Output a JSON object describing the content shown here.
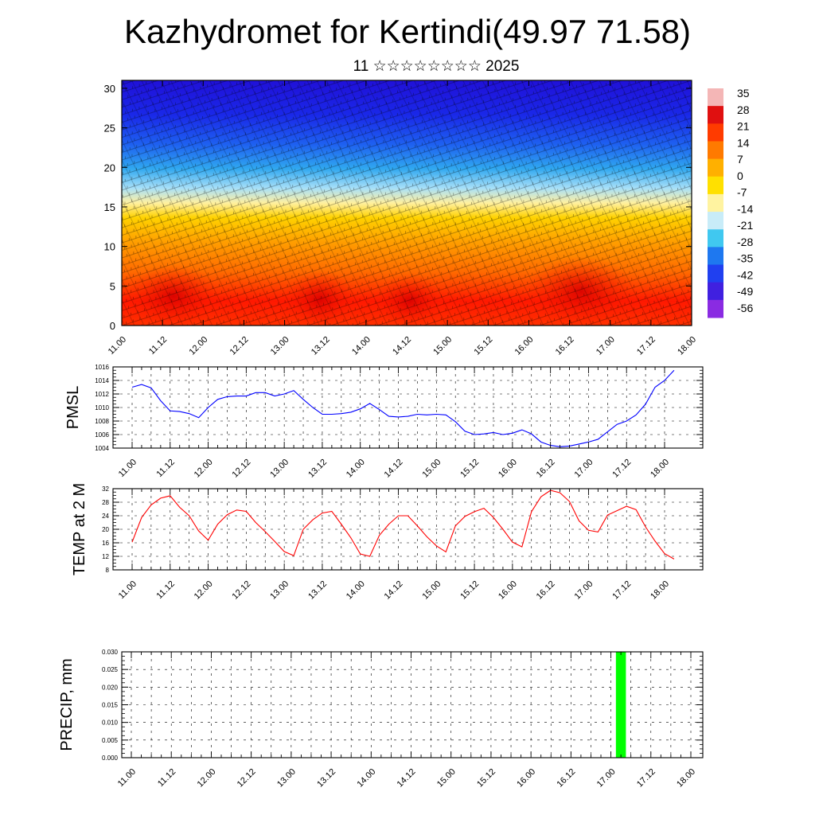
{
  "title": "Kazhydromet for Kertindi(49.97 71.58)",
  "subtitle": "11 ☆☆☆☆☆☆☆☆ 2025",
  "colors": {
    "pmsl_line": "#0000ff",
    "temp_line": "#ff0000",
    "precip_bar": "#00ff00",
    "colorbar": [
      "#f4b6b6",
      "#e01010",
      "#ff3b00",
      "#ff7a00",
      "#ffb000",
      "#ffe000",
      "#fff3a0",
      "#c8ecf8",
      "#40c8f0",
      "#1e78f0",
      "#2040f0",
      "#4020e0",
      "#8a2be2"
    ]
  },
  "chart_data": [
    {
      "type": "heatmap",
      "name": "cross-section",
      "x_ticks": [
        "11.00",
        "11.12",
        "12.00",
        "12.12",
        "13.00",
        "13.12",
        "14.00",
        "14.12",
        "15.00",
        "15.12",
        "16.00",
        "16.12",
        "17.00",
        "17.12",
        "18.00"
      ],
      "y_ticks": [
        "0",
        "5",
        "10",
        "15",
        "20",
        "25",
        "30"
      ],
      "ylim": [
        0,
        31
      ],
      "colorbar_labels": [
        "35",
        "28",
        "21",
        "14",
        "7",
        "0",
        "-7",
        "-14",
        "-21",
        "-28",
        "-35",
        "-42",
        "-49",
        "-56"
      ],
      "overlay": "wind barbs"
    },
    {
      "type": "line",
      "ylabel": "PMSL",
      "x_ticks": [
        "11.00",
        "11.12",
        "12.00",
        "12.12",
        "13.00",
        "13.12",
        "14.00",
        "14.12",
        "15.00",
        "15.12",
        "16.00",
        "16.12",
        "17.00",
        "17.12",
        "18.00"
      ],
      "y_ticks": [
        "1004",
        "1006",
        "1008",
        "1010",
        "1012",
        "1014",
        "1016"
      ],
      "ylim": [
        1004,
        1016
      ],
      "values": [
        1013,
        1013.4,
        1012.9,
        1011,
        1009.5,
        1009.4,
        1009.1,
        1008.5,
        1010,
        1011.2,
        1011.6,
        1011.7,
        1011.7,
        1012.2,
        1012.2,
        1011.7,
        1012,
        1012.5,
        1011.2,
        1010,
        1009,
        1009,
        1009.1,
        1009.3,
        1009.8,
        1010.6,
        1009.7,
        1008.7,
        1008.6,
        1008.7,
        1009,
        1008.9,
        1009,
        1008.9,
        1007.9,
        1006.5,
        1006,
        1006.1,
        1006.3,
        1006,
        1006.2,
        1006.7,
        1006.1,
        1004.9,
        1004.4,
        1004.2,
        1004.3,
        1004.6,
        1004.9,
        1005.3,
        1006.4,
        1007.5,
        1008,
        1008.9,
        1010.5,
        1013,
        1014,
        1015.5
      ]
    },
    {
      "type": "line",
      "ylabel": "TEMP at 2 M",
      "x_ticks": [
        "11.00",
        "11.12",
        "12.00",
        "12.12",
        "13.00",
        "13.12",
        "14.00",
        "14.12",
        "15.00",
        "15.12",
        "16.00",
        "16.12",
        "17.00",
        "17.12",
        "18.00"
      ],
      "y_ticks": [
        "8",
        "12",
        "16",
        "20",
        "24",
        "28",
        "32"
      ],
      "ylim": [
        8,
        32
      ],
      "values": [
        16.2,
        23.5,
        27.2,
        29.2,
        29.9,
        26.5,
        24,
        19.5,
        16.8,
        21.5,
        24.3,
        25.7,
        25.3,
        22,
        19.3,
        16.4,
        13.4,
        12.2,
        20,
        22.8,
        24.8,
        25.3,
        21.5,
        17.5,
        12.7,
        12,
        18.2,
        21.5,
        24,
        24,
        21,
        17.8,
        15.1,
        13.3,
        21,
        23.8,
        25.2,
        26.2,
        23.5,
        20,
        16.2,
        14.8,
        25.2,
        29.6,
        31.5,
        30.8,
        28.2,
        22.5,
        19.7,
        19.2,
        24.2,
        25.5,
        26.8,
        25.8,
        20.7,
        16.5,
        12.8,
        11.2
      ]
    },
    {
      "type": "bar",
      "ylabel": "PRECIP, mm",
      "x_ticks": [
        "11.00",
        "11.12",
        "12.00",
        "12.12",
        "13.00",
        "13.12",
        "14.00",
        "14.12",
        "15.00",
        "15.12",
        "16.00",
        "16.12",
        "17.00",
        "17.12",
        "18.00"
      ],
      "y_ticks": [
        "0.000",
        "0.005",
        "0.010",
        "0.015",
        "0.020",
        "0.025",
        "0.030"
      ],
      "ylim": [
        0,
        0.03
      ],
      "bars": [
        {
          "x_hours": 147,
          "value": 0.03
        }
      ]
    }
  ]
}
